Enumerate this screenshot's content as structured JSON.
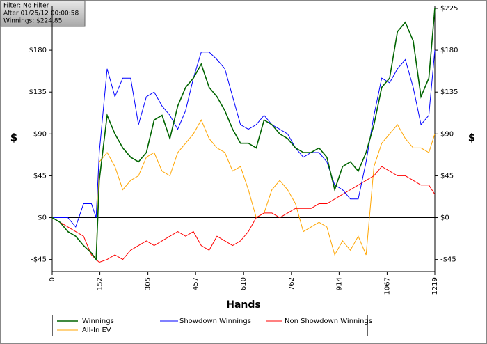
{
  "info": {
    "lines": [
      "Filter: No Filter",
      "After 01/25/12 00:00:58",
      "Winnings: $224.85"
    ]
  },
  "chart_data": {
    "type": "line",
    "ylabel": "$",
    "y2label": "$",
    "xlabel": "Hands",
    "x": [
      0,
      25,
      50,
      75,
      100,
      125,
      140,
      150,
      175,
      200,
      225,
      250,
      275,
      300,
      325,
      350,
      375,
      400,
      425,
      450,
      475,
      500,
      525,
      550,
      575,
      600,
      625,
      650,
      675,
      700,
      725,
      750,
      775,
      800,
      825,
      850,
      875,
      900,
      925,
      950,
      975,
      1000,
      1025,
      1050,
      1075,
      1100,
      1125,
      1150,
      1175,
      1200,
      1219
    ],
    "series": [
      {
        "name": "Winnings",
        "color": "#006400",
        "values": [
          0,
          -5,
          -15,
          -20,
          -30,
          -38,
          -45,
          40,
          110,
          90,
          75,
          65,
          60,
          70,
          105,
          110,
          85,
          120,
          140,
          150,
          165,
          140,
          130,
          115,
          95,
          80,
          80,
          75,
          105,
          100,
          90,
          85,
          75,
          70,
          70,
          75,
          65,
          30,
          55,
          60,
          50,
          70,
          100,
          140,
          150,
          200,
          210,
          190,
          130,
          150,
          225
        ]
      },
      {
        "name": "Showdown Winnings",
        "color": "#0000ff",
        "values": [
          0,
          0,
          0,
          -10,
          15,
          15,
          0,
          70,
          160,
          130,
          150,
          150,
          100,
          130,
          135,
          120,
          110,
          95,
          115,
          150,
          178,
          178,
          170,
          160,
          130,
          100,
          95,
          100,
          110,
          100,
          95,
          90,
          75,
          65,
          70,
          70,
          60,
          35,
          30,
          20,
          20,
          60,
          110,
          150,
          145,
          160,
          170,
          140,
          100,
          110,
          180
        ]
      },
      {
        "name": "Non Showdown Winnings",
        "color": "#ff0000",
        "values": [
          0,
          -5,
          -10,
          -15,
          -20,
          -40,
          -45,
          -48,
          -45,
          -40,
          -45,
          -35,
          -30,
          -25,
          -30,
          -25,
          -20,
          -15,
          -20,
          -15,
          -30,
          -35,
          -20,
          -25,
          -30,
          -25,
          -15,
          0,
          5,
          5,
          0,
          5,
          10,
          10,
          10,
          15,
          15,
          20,
          25,
          30,
          35,
          40,
          45,
          55,
          50,
          45,
          45,
          40,
          35,
          35,
          25
        ]
      },
      {
        "name": "All-In EV",
        "color": "#ffa500",
        "values": [
          0,
          -5,
          -15,
          -20,
          -30,
          -38,
          -45,
          60,
          70,
          55,
          30,
          40,
          45,
          65,
          70,
          50,
          45,
          70,
          80,
          90,
          105,
          85,
          75,
          70,
          50,
          55,
          30,
          0,
          5,
          30,
          40,
          30,
          15,
          -15,
          -10,
          -5,
          -10,
          -40,
          -25,
          -35,
          -20,
          -40,
          55,
          80,
          90,
          100,
          85,
          75,
          75,
          70,
          90
        ]
      }
    ],
    "xlim": [
      0,
      1219
    ],
    "xticks": [
      0,
      152,
      305,
      457,
      610,
      762,
      914,
      1067,
      1219
    ],
    "ylim": [
      -58,
      225
    ],
    "yticks": [
      {
        "value": -45,
        "label": "-$45"
      },
      {
        "value": 0,
        "label": "$0"
      },
      {
        "value": 45,
        "label": "$45"
      },
      {
        "value": 90,
        "label": "$90"
      },
      {
        "value": 135,
        "label": "$135"
      },
      {
        "value": 180,
        "label": "$180"
      }
    ],
    "y2lim": [
      -58,
      225
    ],
    "y2ticks": [
      {
        "value": -45,
        "label": "-$45"
      },
      {
        "value": 0,
        "label": "$0"
      },
      {
        "value": 45,
        "label": "$45"
      },
      {
        "value": 90,
        "label": "$90"
      },
      {
        "value": 135,
        "label": "$135"
      },
      {
        "value": 180,
        "label": "$180"
      },
      {
        "value": 225,
        "label": "$225"
      }
    ]
  }
}
